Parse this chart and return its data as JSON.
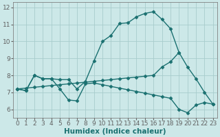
{
  "bg_color": "#cce8e8",
  "grid_color": "#a8cccc",
  "line_color": "#1a7070",
  "line_width": 1.0,
  "marker": "D",
  "marker_size": 2.5,
  "xlabel": "Humidex (Indice chaleur)",
  "xlabel_fontsize": 7.5,
  "tick_fontsize": 6.5,
  "xlim": [
    -0.5,
    23.5
  ],
  "ylim": [
    5.5,
    12.3
  ],
  "yticks": [
    6,
    7,
    8,
    9,
    10,
    11,
    12
  ],
  "xticks": [
    0,
    1,
    2,
    3,
    4,
    5,
    6,
    7,
    8,
    9,
    10,
    11,
    12,
    13,
    14,
    15,
    16,
    17,
    18,
    19,
    20,
    21,
    22,
    23
  ],
  "curve1_x": [
    0,
    1,
    2,
    3,
    4,
    5,
    6,
    7,
    8,
    9,
    10,
    11,
    12,
    13,
    14,
    15,
    16,
    17,
    18,
    19
  ],
  "curve1_y": [
    7.2,
    7.1,
    8.0,
    7.8,
    7.8,
    7.75,
    7.75,
    7.2,
    7.65,
    8.85,
    10.0,
    10.35,
    11.05,
    11.1,
    11.45,
    11.65,
    11.75,
    11.3,
    10.75,
    9.35
  ],
  "curve2_x": [
    0,
    1,
    2,
    3,
    4,
    5,
    6,
    7,
    8,
    9,
    10,
    11,
    12,
    13,
    14,
    15,
    16,
    17,
    18,
    19,
    20,
    21,
    22,
    23
  ],
  "curve2_y": [
    7.2,
    7.25,
    7.3,
    7.35,
    7.4,
    7.45,
    7.5,
    7.55,
    7.6,
    7.65,
    7.7,
    7.75,
    7.8,
    7.85,
    7.9,
    7.95,
    8.0,
    8.5,
    8.8,
    9.35,
    8.5,
    7.8,
    7.0,
    6.3
  ],
  "curve3_x": [
    0,
    1,
    2,
    3,
    4,
    5,
    6,
    7,
    8,
    9,
    10,
    11,
    12,
    13,
    14,
    15,
    16,
    17,
    18,
    19,
    20,
    21,
    22,
    23
  ],
  "curve3_y": [
    7.2,
    7.1,
    8.0,
    7.8,
    7.8,
    7.2,
    6.55,
    6.5,
    7.5,
    7.55,
    7.45,
    7.35,
    7.25,
    7.15,
    7.05,
    6.95,
    6.85,
    6.75,
    6.65,
    6.0,
    5.8,
    6.25,
    6.4,
    6.3
  ]
}
